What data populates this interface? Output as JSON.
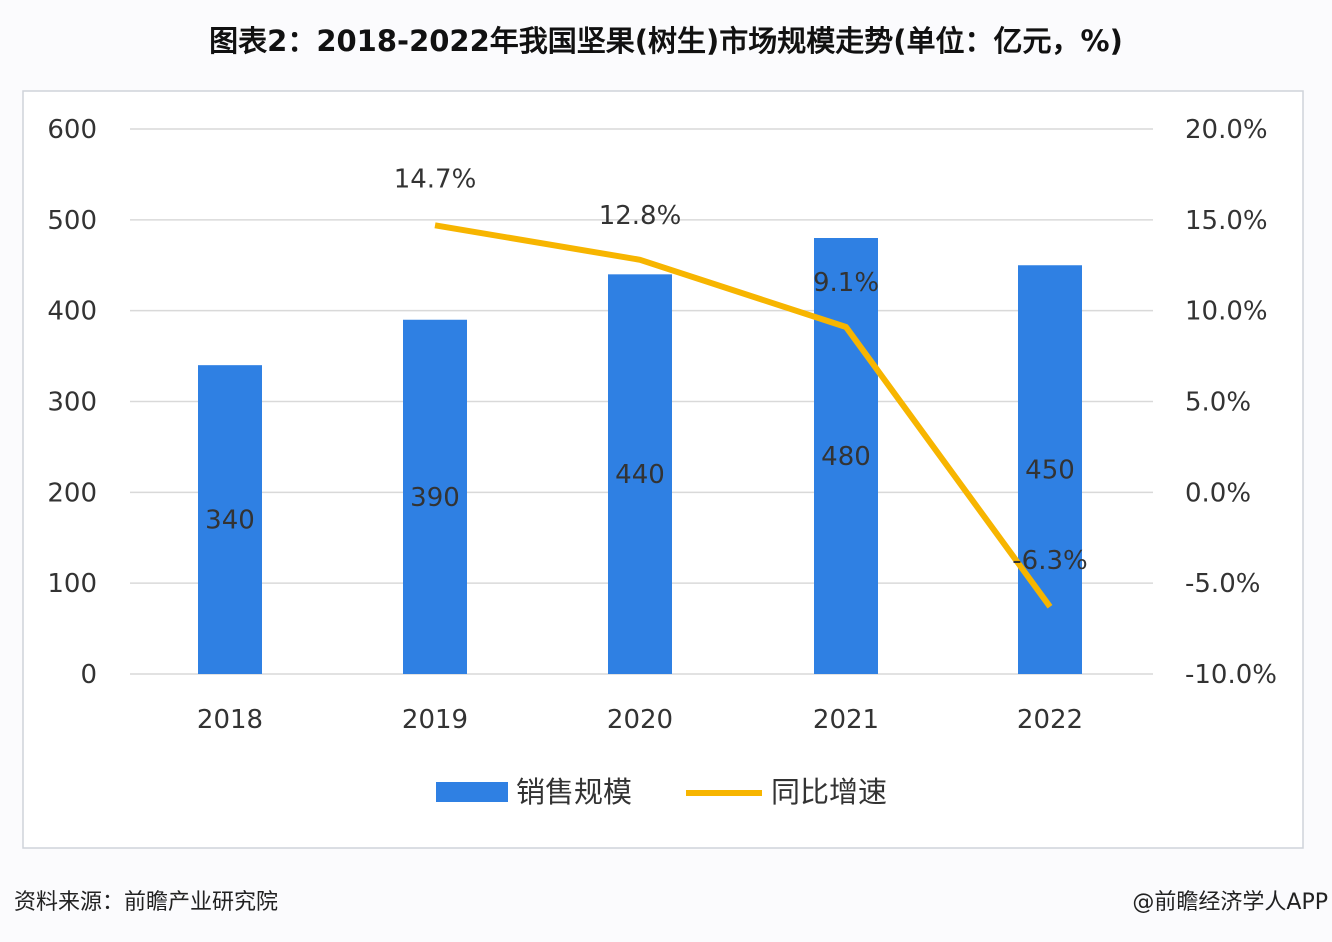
{
  "title": "图表2：2018-2022年我国坚果(树生)市场规模走势(单位：亿元，%)",
  "source": "资料来源：前瞻产业研究院",
  "credit": "@前瞻经济学人APP",
  "colors": {
    "bar": "#2f80e3",
    "line": "#f7b500"
  },
  "chart_data": {
    "type": "bar+line",
    "title": "图表2：2018-2022年我国坚果(树生)市场规模走势(单位：亿元，%)",
    "categories": [
      "2018",
      "2019",
      "2020",
      "2021",
      "2022"
    ],
    "series": [
      {
        "name": "销售规模",
        "type": "bar",
        "axis": "left",
        "values": [
          340,
          390,
          440,
          480,
          450
        ],
        "labels": [
          "340",
          "390",
          "440",
          "480",
          "450"
        ]
      },
      {
        "name": "同比增速",
        "type": "line",
        "axis": "right",
        "values": [
          null,
          14.7,
          12.8,
          9.1,
          -6.3
        ],
        "labels": [
          "",
          "14.7%",
          "12.8%",
          "9.1%",
          "-6.3%"
        ]
      }
    ],
    "left_axis": {
      "ylim": [
        0,
        600
      ],
      "ticks": [
        "0",
        "100",
        "200",
        "300",
        "400",
        "500",
        "600"
      ]
    },
    "right_axis": {
      "ylim": [
        -10,
        20
      ],
      "ticks": [
        "-10.0%",
        "-5.0%",
        "0.0%",
        "5.0%",
        "10.0%",
        "15.0%",
        "20.0%"
      ]
    },
    "grid": true,
    "legend": "bottom"
  }
}
